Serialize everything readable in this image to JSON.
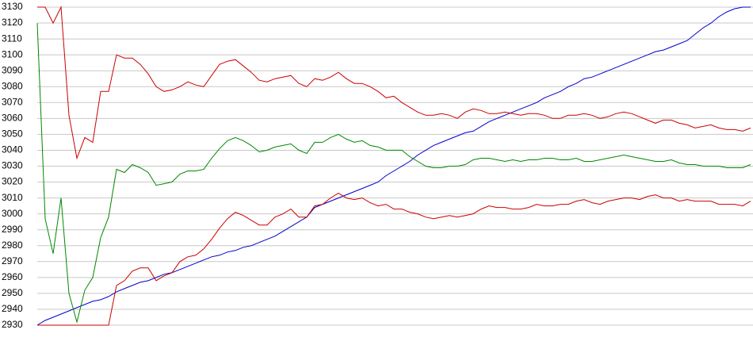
{
  "chart_data": {
    "type": "line",
    "ylim": [
      2930,
      3130
    ],
    "yticks": [
      2930,
      2940,
      2950,
      2960,
      2970,
      2980,
      2990,
      3000,
      3010,
      3020,
      3030,
      3040,
      3050,
      3060,
      3070,
      3080,
      3090,
      3100,
      3110,
      3120,
      3130
    ],
    "grid": true,
    "series": [
      {
        "color": "#0000cc",
        "values": [
          2930,
          2933,
          2935,
          2937,
          2939,
          2941,
          2943,
          2945,
          2946,
          2948,
          2951,
          2953,
          2955,
          2957,
          2958,
          2960,
          2962,
          2963,
          2965,
          2967,
          2969,
          2971,
          2973,
          2974,
          2976,
          2977,
          2979,
          2980,
          2982,
          2984,
          2986,
          2989,
          2992,
          2995,
          2998,
          3004,
          3006,
          3008,
          3010,
          3012,
          3014,
          3016,
          3018,
          3020,
          3024,
          3027,
          3030,
          3033,
          3037,
          3040,
          3043,
          3045,
          3047,
          3049,
          3051,
          3052,
          3055,
          3058,
          3060,
          3062,
          3064,
          3066,
          3068,
          3070,
          3073,
          3075,
          3077,
          3080,
          3082,
          3085,
          3086,
          3088,
          3090,
          3092,
          3094,
          3096,
          3098,
          3100,
          3102,
          3103,
          3105,
          3107,
          3109,
          3113,
          3117,
          3120,
          3124,
          3127,
          3129,
          3130,
          3130
        ]
      },
      {
        "color": "#cc0000",
        "values": [
          3130,
          3130,
          3120,
          3130,
          3062,
          3035,
          3048,
          3045,
          3077,
          3077,
          3100,
          3098,
          3098,
          3094,
          3088,
          3080,
          3077,
          3078,
          3080,
          3083,
          3081,
          3080,
          3087,
          3094,
          3096,
          3097,
          3093,
          3089,
          3084,
          3083,
          3085,
          3086,
          3087,
          3082,
          3080,
          3085,
          3084,
          3086,
          3089,
          3085,
          3082,
          3082,
          3080,
          3077,
          3073,
          3074,
          3070,
          3067,
          3064,
          3062,
          3062,
          3063,
          3062,
          3060,
          3064,
          3066,
          3065,
          3063,
          3063,
          3064,
          3063,
          3062,
          3063,
          3063,
          3062,
          3060,
          3060,
          3062,
          3062,
          3063,
          3062,
          3060,
          3061,
          3063,
          3064,
          3063,
          3061,
          3059,
          3057,
          3059,
          3059,
          3057,
          3056,
          3054,
          3055,
          3056,
          3054,
          3053,
          3053,
          3052,
          3054
        ]
      },
      {
        "color": "#008800",
        "values": [
          3120,
          2997,
          2975,
          3010,
          2950,
          2932,
          2952,
          2960,
          2985,
          2998,
          3028,
          3026,
          3031,
          3029,
          3026,
          3018,
          3019,
          3020,
          3025,
          3027,
          3027,
          3028,
          3035,
          3041,
          3046,
          3048,
          3046,
          3043,
          3039,
          3040,
          3042,
          3043,
          3044,
          3040,
          3038,
          3045,
          3045,
          3048,
          3050,
          3047,
          3045,
          3046,
          3043,
          3042,
          3040,
          3040,
          3040,
          3036,
          3033,
          3030,
          3029,
          3029,
          3030,
          3030,
          3031,
          3034,
          3035,
          3035,
          3034,
          3033,
          3034,
          3033,
          3034,
          3034,
          3035,
          3035,
          3034,
          3034,
          3035,
          3033,
          3033,
          3034,
          3035,
          3036,
          3037,
          3036,
          3035,
          3034,
          3033,
          3033,
          3034,
          3032,
          3031,
          3031,
          3030,
          3030,
          3030,
          3029,
          3029,
          3029,
          3031
        ]
      },
      {
        "color": "#cc0000",
        "values": [
          2930,
          2930,
          2930,
          2930,
          2930,
          2930,
          2930,
          2930,
          2930,
          2930,
          2955,
          2958,
          2964,
          2966,
          2966,
          2958,
          2961,
          2963,
          2970,
          2973,
          2974,
          2978,
          2984,
          2991,
          2997,
          3001,
          2999,
          2996,
          2993,
          2993,
          2998,
          3000,
          3003,
          2998,
          2998,
          3005,
          3006,
          3010,
          3013,
          3010,
          3009,
          3010,
          3007,
          3005,
          3006,
          3003,
          3003,
          3001,
          3000,
          2998,
          2997,
          2998,
          2999,
          2998,
          2999,
          3000,
          3003,
          3005,
          3004,
          3004,
          3003,
          3003,
          3004,
          3006,
          3005,
          3005,
          3006,
          3006,
          3008,
          3009,
          3007,
          3006,
          3008,
          3009,
          3010,
          3010,
          3009,
          3011,
          3012,
          3010,
          3010,
          3008,
          3009,
          3008,
          3008,
          3008,
          3006,
          3006,
          3006,
          3005,
          3008
        ]
      }
    ]
  }
}
